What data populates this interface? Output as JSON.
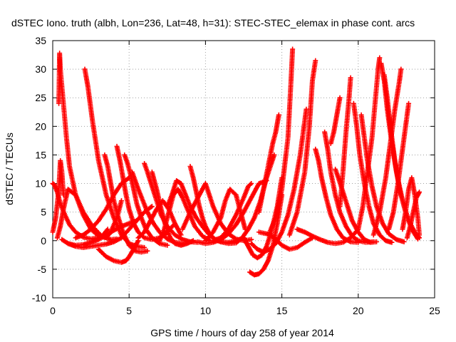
{
  "chart_data": {
    "type": "scatter",
    "title": "dSTEC Iono. truth (albh, Lon=236, Lat=48, h=31): STEC-STEC_elemax in phase cont. arcs",
    "xlabel": "GPS time / hours of day 258 of year 2014",
    "ylabel": "dSTEC  / TECUs",
    "xlim": [
      0,
      25
    ],
    "ylim": [
      -10,
      35
    ],
    "xticks": [
      0,
      5,
      10,
      15,
      20,
      25
    ],
    "yticks": [
      -10,
      -5,
      0,
      5,
      10,
      15,
      20,
      25,
      30,
      35
    ],
    "grid": true,
    "legend": "none",
    "marker": "+",
    "color": "#ff0000",
    "series": [
      {
        "x": [
          0.0,
          0.1,
          0.3,
          0.5,
          0.8,
          1.1,
          1.5,
          2.0,
          2.5,
          3.0,
          3.3,
          3.6
        ],
        "y": [
          10.0,
          9.8,
          8.5,
          6.5,
          4.5,
          2.8,
          1.5,
          0.6,
          0.3,
          0.5,
          1.0,
          2.0
        ]
      },
      {
        "x": [
          0.0,
          0.2,
          0.4,
          0.5,
          0.6,
          0.7
        ],
        "y": [
          1.5,
          4.0,
          9.0,
          14.0,
          12.0,
          8.0
        ]
      },
      {
        "x": [
          0.4,
          0.45,
          0.5,
          0.7,
          0.9,
          1.1,
          1.5,
          2.0,
          2.5,
          3.0,
          3.5,
          3.8,
          4.2,
          4.5
        ],
        "y": [
          24.0,
          32.8,
          30.0,
          24.0,
          18.0,
          13.0,
          8.0,
          4.5,
          2.0,
          0.8,
          0.5,
          1.5,
          4.0,
          7.0
        ]
      },
      {
        "x": [
          0.3,
          0.5,
          0.7,
          1.0,
          1.5,
          2.0,
          2.6,
          3.2,
          3.8,
          4.2
        ],
        "y": [
          0.5,
          2.5,
          5.5,
          9.0,
          8.0,
          5.0,
          2.5,
          0.8,
          0.2,
          0.3
        ]
      },
      {
        "x": [
          0.6,
          1.0,
          1.5,
          2.0,
          2.5,
          3.0,
          3.5,
          4.0,
          4.5,
          5.0,
          5.5,
          6.0,
          6.5
        ],
        "y": [
          0.2,
          -0.5,
          -0.8,
          -0.7,
          -0.3,
          0.2,
          1.0,
          1.8,
          2.5,
          3.0,
          3.5,
          5.0,
          6.0
        ]
      },
      {
        "x": [
          2.1,
          2.3,
          2.6,
          3.0,
          3.5,
          4.0,
          4.5,
          5.0,
          5.5,
          6.0
        ],
        "y": [
          30.0,
          27.0,
          21.0,
          14.0,
          8.0,
          4.0,
          1.0,
          -0.5,
          -1.0,
          -1.2
        ]
      },
      {
        "x": [
          1.0,
          1.5,
          2.0,
          2.5,
          3.0,
          3.5,
          4.0,
          4.5,
          5.0,
          5.5
        ],
        "y": [
          -0.5,
          -1.0,
          -1.2,
          -1.0,
          -0.8,
          -0.6,
          -0.2,
          0.5,
          2.0,
          3.5
        ]
      },
      {
        "x": [
          1.5,
          2.0,
          2.5,
          3.0,
          3.5,
          4.0,
          4.5,
          5.0
        ],
        "y": [
          0.5,
          1.0,
          2.0,
          3.5,
          5.5,
          8.0,
          10.0,
          11.0
        ]
      },
      {
        "x": [
          3.4,
          3.6,
          3.8,
          4.0,
          4.3,
          4.6,
          5.0,
          5.4,
          5.8,
          6.2
        ],
        "y": [
          15.0,
          13.0,
          10.0,
          7.0,
          4.0,
          1.5,
          -0.8,
          -1.8,
          -2.0,
          -1.8
        ]
      },
      {
        "x": [
          3.0,
          3.5,
          4.0,
          4.5,
          4.8,
          5.0,
          5.3,
          5.6
        ],
        "y": [
          -1.5,
          -2.8,
          -3.5,
          -3.8,
          -3.5,
          -2.8,
          -1.5,
          0.0
        ]
      },
      {
        "x": [
          4.2,
          4.4,
          4.6,
          4.8,
          5.0,
          5.3,
          5.6,
          6.0,
          6.5,
          7.0,
          7.5,
          8.0
        ],
        "y": [
          16.5,
          14.0,
          11.0,
          8.0,
          5.5,
          3.0,
          1.5,
          0.5,
          0.2,
          0.5,
          1.5,
          3.0
        ]
      },
      {
        "x": [
          4.7,
          4.9,
          5.1,
          5.3,
          5.5,
          5.8,
          6.1,
          6.5,
          7.0,
          7.5
        ],
        "y": [
          15.0,
          13.5,
          11.5,
          9.0,
          6.5,
          4.0,
          2.0,
          0.5,
          -0.5,
          -0.8
        ]
      },
      {
        "x": [
          5.2,
          5.4,
          5.6,
          5.9,
          6.2,
          6.6,
          7.0,
          7.5,
          8.0,
          8.5
        ],
        "y": [
          12.0,
          10.5,
          9.0,
          7.0,
          5.0,
          3.0,
          1.5,
          0.3,
          -0.3,
          -0.5
        ]
      },
      {
        "x": [
          5.6,
          6.0,
          6.4,
          6.8,
          7.2,
          7.6,
          8.0,
          8.4
        ],
        "y": [
          0.5,
          1.5,
          3.5,
          5.5,
          7.0,
          5.5,
          3.0,
          1.0
        ]
      },
      {
        "x": [
          6.0,
          6.2,
          6.5,
          6.8,
          7.1,
          7.5,
          8.0,
          8.5,
          9.0,
          9.5
        ],
        "y": [
          13.5,
          12.0,
          9.5,
          7.0,
          4.5,
          2.5,
          1.0,
          0.2,
          -0.2,
          -0.3
        ]
      },
      {
        "x": [
          6.5,
          6.8,
          7.1,
          7.4,
          7.7,
          8.0,
          8.4,
          8.8,
          9.2
        ],
        "y": [
          12.0,
          9.0,
          5.5,
          2.5,
          0.5,
          -0.5,
          -0.8,
          -0.5,
          0.0
        ]
      },
      {
        "x": [
          7.0,
          7.3,
          7.6,
          7.9,
          8.2,
          8.5,
          8.9,
          9.3,
          9.8,
          10.3
        ],
        "y": [
          0.0,
          2.0,
          5.0,
          8.0,
          9.0,
          7.5,
          5.0,
          2.5,
          0.8,
          0.0
        ]
      },
      {
        "x": [
          7.5,
          7.8,
          8.1,
          8.4,
          8.7,
          9.0,
          9.4,
          9.8,
          10.2,
          10.6,
          11.0
        ],
        "y": [
          6.0,
          8.0,
          10.5,
          10.0,
          8.0,
          6.0,
          4.0,
          2.5,
          1.2,
          0.3,
          -0.2
        ]
      },
      {
        "x": [
          9.0,
          9.2,
          9.4,
          9.6,
          9.8,
          10.0,
          10.3,
          10.6,
          11.0,
          11.5,
          12.0,
          12.5
        ],
        "y": [
          13.0,
          11.0,
          8.5,
          6.0,
          4.0,
          2.5,
          1.0,
          0.2,
          -0.2,
          -0.3,
          0.0,
          0.5
        ]
      },
      {
        "x": [
          8.5,
          9.0,
          9.5,
          10.0,
          10.5,
          11.0,
          11.5,
          12.0,
          12.5,
          13.0
        ],
        "y": [
          2.0,
          5.0,
          7.5,
          10.0,
          6.0,
          3.0,
          1.2,
          0.3,
          0.0,
          0.2
        ]
      },
      {
        "x": [
          9.5,
          10.0,
          10.5,
          11.0,
          11.5,
          12.0,
          12.5,
          13.0,
          13.5,
          14.0
        ],
        "y": [
          -0.2,
          -0.5,
          -0.3,
          0.2,
          1.2,
          2.8,
          5.0,
          7.5,
          10.0,
          10.5
        ]
      },
      {
        "x": [
          10.0,
          10.5,
          11.0,
          11.3,
          11.6,
          12.0,
          12.3,
          12.6
        ],
        "y": [
          0.0,
          1.5,
          4.0,
          7.0,
          9.0,
          8.0,
          5.0,
          2.0
        ]
      },
      {
        "x": [
          10.5,
          11.0,
          11.5,
          12.0,
          12.5,
          12.8,
          13.0
        ],
        "y": [
          0.0,
          0.5,
          2.0,
          4.5,
          7.5,
          9.5,
          10.0
        ]
      },
      {
        "x": [
          11.0,
          11.5,
          12.0,
          12.4,
          12.8,
          13.2,
          13.6,
          14.0,
          14.5
        ],
        "y": [
          -0.2,
          -0.5,
          -0.4,
          0.5,
          2.0,
          4.0,
          7.0,
          11.0,
          15.0
        ]
      },
      {
        "x": [
          12.5,
          12.8,
          13.1,
          13.4,
          13.7,
          14.0,
          14.3,
          14.7,
          15.0
        ],
        "y": [
          0.5,
          -1.0,
          -2.5,
          -3.0,
          -2.5,
          -1.0,
          1.5,
          6.0,
          11.0
        ]
      },
      {
        "x": [
          12.9,
          13.2,
          13.5,
          13.8,
          14.1,
          14.4,
          14.7,
          15.0
        ],
        "y": [
          -5.5,
          -6.0,
          -5.8,
          -5.0,
          -3.5,
          -1.0,
          3.0,
          8.0
        ]
      },
      {
        "x": [
          13.0,
          13.4,
          13.8,
          14.2,
          14.6,
          15.0,
          15.4,
          15.8,
          16.2,
          16.6
        ],
        "y": [
          -0.5,
          -1.5,
          -2.0,
          -1.5,
          -0.5,
          1.5,
          4.5,
          9.0,
          15.0,
          23.0
        ]
      },
      {
        "x": [
          13.5,
          13.8,
          14.1,
          14.4,
          14.6,
          14.8
        ],
        "y": [
          5.0,
          9.0,
          13.0,
          17.0,
          19.0,
          22.0
        ]
      },
      {
        "x": [
          14.2,
          14.6,
          15.0,
          15.4,
          15.6,
          15.7
        ],
        "y": [
          1.5,
          4.0,
          9.0,
          18.0,
          28.0,
          33.5
        ]
      },
      {
        "x": [
          13.5,
          14.0,
          14.5,
          15.0,
          15.5,
          16.0,
          16.5,
          17.0
        ],
        "y": [
          1.5,
          1.2,
          0.5,
          -0.8,
          -1.5,
          -1.2,
          -0.3,
          0.5
        ]
      },
      {
        "x": [
          15.5,
          16.0,
          16.5,
          16.8,
          17.0,
          17.2
        ],
        "y": [
          1.0,
          5.0,
          12.0,
          20.0,
          28.0,
          31.5
        ]
      },
      {
        "x": [
          16.0,
          16.5,
          17.0,
          17.5,
          18.0,
          18.5,
          19.0,
          19.5,
          20.0
        ],
        "y": [
          2.0,
          1.5,
          0.8,
          0.2,
          -0.3,
          -0.5,
          -0.3,
          0.5,
          2.0
        ]
      },
      {
        "x": [
          17.2,
          17.4,
          17.6,
          17.9,
          18.2,
          18.6,
          19.0,
          19.5,
          20.0
        ],
        "y": [
          16.0,
          14.0,
          11.0,
          7.5,
          4.5,
          2.0,
          0.5,
          -0.2,
          -0.3
        ]
      },
      {
        "x": [
          17.8,
          18.0,
          18.2,
          18.5,
          18.8,
          19.2,
          19.6,
          20.0,
          20.5,
          21.0
        ],
        "y": [
          19.0,
          16.0,
          12.0,
          8.0,
          5.0,
          2.5,
          0.8,
          0.0,
          -0.3,
          -0.2
        ]
      },
      {
        "x": [
          18.2,
          18.4,
          18.6,
          18.8
        ],
        "y": [
          17.0,
          19.0,
          22.0,
          25.0
        ]
      },
      {
        "x": [
          18.5,
          18.7,
          19.0,
          19.3,
          19.6,
          20.0,
          20.4,
          20.8,
          21.2
        ],
        "y": [
          12.5,
          11.0,
          8.5,
          6.0,
          3.5,
          1.5,
          0.2,
          -0.3,
          -0.2
        ]
      },
      {
        "x": [
          18.8,
          19.0,
          19.2,
          19.4,
          19.5
        ],
        "y": [
          6.0,
          12.0,
          19.0,
          25.0,
          28.5
        ]
      },
      {
        "x": [
          19.7,
          19.9,
          20.1,
          20.4,
          20.7,
          21.0,
          21.4,
          21.8,
          22.2
        ],
        "y": [
          24.0,
          20.0,
          15.0,
          10.0,
          6.0,
          3.0,
          1.0,
          0.0,
          -0.3
        ]
      },
      {
        "x": [
          20.2,
          20.4,
          20.6,
          20.9,
          21.2,
          21.6,
          22.0,
          22.5,
          23.0
        ],
        "y": [
          22.0,
          18.0,
          14.0,
          9.5,
          6.0,
          3.0,
          1.2,
          0.2,
          -0.2
        ]
      },
      {
        "x": [
          20.0,
          20.3,
          20.6,
          20.9,
          21.1,
          21.3,
          21.4
        ],
        "y": [
          2.0,
          6.0,
          12.0,
          18.0,
          24.0,
          30.0,
          32.0
        ]
      },
      {
        "x": [
          21.5,
          21.7,
          21.9,
          22.2,
          22.5,
          22.9,
          23.3,
          23.7,
          24.0
        ],
        "y": [
          31.0,
          28.0,
          23.0,
          17.0,
          12.0,
          7.0,
          3.5,
          1.5,
          0.5
        ]
      },
      {
        "x": [
          21.7,
          21.9,
          22.1,
          22.4,
          22.7,
          23.1,
          23.5,
          23.9
        ],
        "y": [
          29.0,
          25.0,
          20.0,
          14.0,
          9.0,
          5.0,
          2.0,
          0.3
        ]
      },
      {
        "x": [
          21.0,
          21.4,
          21.8,
          22.1,
          22.4,
          22.7,
          22.8
        ],
        "y": [
          1.0,
          5.0,
          11.0,
          17.0,
          23.0,
          28.0,
          30.0
        ]
      },
      {
        "x": [
          22.0,
          22.3,
          22.6,
          22.9,
          23.1,
          23.3
        ],
        "y": [
          2.0,
          5.0,
          10.0,
          16.0,
          20.0,
          24.0
        ]
      },
      {
        "x": [
          22.9,
          23.1,
          23.3,
          23.5,
          23.7,
          23.9,
          24.0
        ],
        "y": [
          2.0,
          5.0,
          9.0,
          11.0,
          8.0,
          4.0,
          1.0
        ]
      },
      {
        "x": [
          23.2,
          23.4,
          23.6,
          23.8,
          24.0
        ],
        "y": [
          0.5,
          2.5,
          5.0,
          7.5,
          8.5
        ]
      }
    ]
  }
}
